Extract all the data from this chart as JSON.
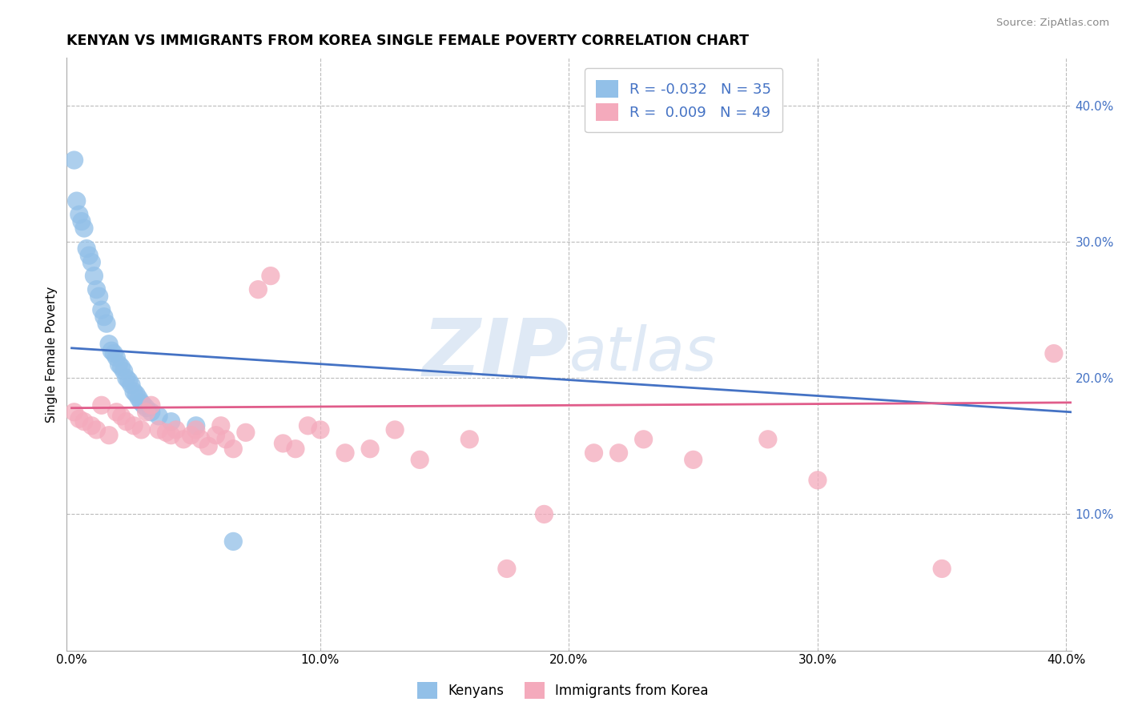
{
  "title": "KENYAN VS IMMIGRANTS FROM KOREA SINGLE FEMALE POVERTY CORRELATION CHART",
  "source": "Source: ZipAtlas.com",
  "ylabel_label": "Single Female Poverty",
  "xlim": [
    -0.002,
    0.402
  ],
  "ylim": [
    0.0,
    0.435
  ],
  "xticks": [
    0.0,
    0.1,
    0.2,
    0.3,
    0.4
  ],
  "xtick_labels": [
    "0.0%",
    "10.0%",
    "20.0%",
    "30.0%",
    "40.0%"
  ],
  "yticks": [
    0.1,
    0.2,
    0.3,
    0.4
  ],
  "ytick_labels": [
    "10.0%",
    "20.0%",
    "30.0%",
    "40.0%"
  ],
  "kenyan_R": -0.032,
  "kenyan_N": 35,
  "korea_R": 0.009,
  "korea_N": 49,
  "kenyan_color": "#92C0E8",
  "korea_color": "#F4AABC",
  "kenyan_line_color": "#4472C4",
  "korea_line_color": "#E05C8A",
  "grid_color": "#BBBBBB",
  "background_color": "#FFFFFF",
  "watermark_color": "#C5D8EE",
  "kenyan_x": [
    0.001,
    0.002,
    0.003,
    0.004,
    0.005,
    0.006,
    0.007,
    0.008,
    0.009,
    0.01,
    0.011,
    0.012,
    0.013,
    0.014,
    0.015,
    0.016,
    0.017,
    0.018,
    0.019,
    0.02,
    0.021,
    0.022,
    0.023,
    0.024,
    0.025,
    0.026,
    0.027,
    0.028,
    0.029,
    0.03,
    0.032,
    0.035,
    0.04,
    0.05,
    0.065
  ],
  "kenyan_y": [
    0.36,
    0.33,
    0.32,
    0.315,
    0.31,
    0.295,
    0.29,
    0.285,
    0.275,
    0.265,
    0.26,
    0.25,
    0.245,
    0.24,
    0.225,
    0.22,
    0.218,
    0.215,
    0.21,
    0.208,
    0.205,
    0.2,
    0.198,
    0.195,
    0.19,
    0.188,
    0.185,
    0.182,
    0.18,
    0.178,
    0.175,
    0.172,
    0.168,
    0.165,
    0.08
  ],
  "korea_x": [
    0.001,
    0.003,
    0.005,
    0.008,
    0.01,
    0.012,
    0.015,
    0.018,
    0.02,
    0.022,
    0.025,
    0.028,
    0.03,
    0.032,
    0.035,
    0.038,
    0.04,
    0.042,
    0.045,
    0.048,
    0.05,
    0.052,
    0.055,
    0.058,
    0.06,
    0.062,
    0.065,
    0.07,
    0.075,
    0.08,
    0.085,
    0.09,
    0.095,
    0.1,
    0.11,
    0.12,
    0.13,
    0.14,
    0.16,
    0.175,
    0.19,
    0.21,
    0.22,
    0.23,
    0.25,
    0.28,
    0.3,
    0.35,
    0.395
  ],
  "korea_y": [
    0.175,
    0.17,
    0.168,
    0.165,
    0.162,
    0.18,
    0.158,
    0.175,
    0.172,
    0.168,
    0.165,
    0.162,
    0.175,
    0.18,
    0.162,
    0.16,
    0.158,
    0.162,
    0.155,
    0.158,
    0.162,
    0.155,
    0.15,
    0.158,
    0.165,
    0.155,
    0.148,
    0.16,
    0.265,
    0.275,
    0.152,
    0.148,
    0.165,
    0.162,
    0.145,
    0.148,
    0.162,
    0.14,
    0.155,
    0.06,
    0.1,
    0.145,
    0.145,
    0.155,
    0.14,
    0.155,
    0.125,
    0.06,
    0.218
  ],
  "kenyan_line_x0": 0.0,
  "kenyan_line_x1": 0.402,
  "kenyan_line_y0": 0.222,
  "kenyan_line_y1": 0.175,
  "korea_line_x0": 0.0,
  "korea_line_x1": 0.402,
  "korea_line_y0": 0.178,
  "korea_line_y1": 0.182
}
